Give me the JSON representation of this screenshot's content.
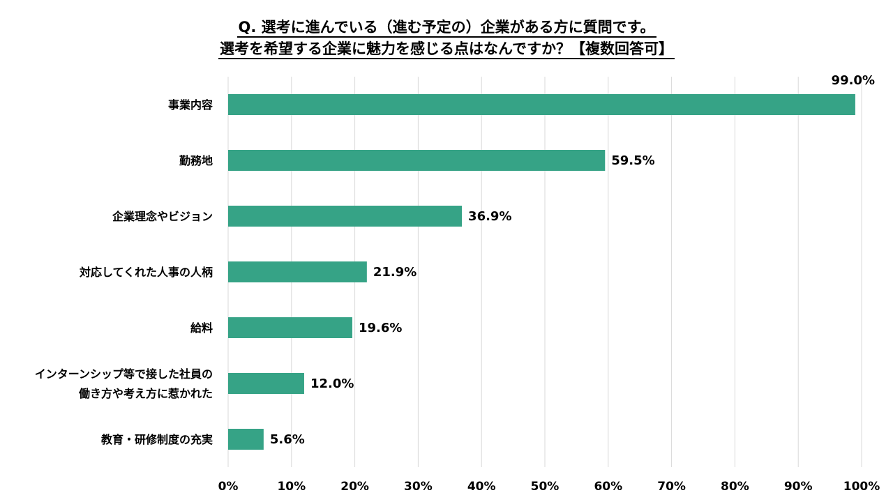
{
  "chart_data": {
    "type": "bar",
    "orientation": "horizontal",
    "title_line1": "Q. 選考に進んでいる（進む予定の）企業がある方に質問です。",
    "title_line2": "選考を希望する企業に魅力を感じる点はなんですか？【複数回答可】",
    "categories": [
      "事業内容",
      "勤務地",
      "企業理念やビジョン",
      "対応してくれた人事の人柄",
      "給料",
      "インターンシップ等で接した社員の働き方や考え方に惹かれた",
      "教育・研修制度の充実"
    ],
    "category_lines": [
      [
        "事業内容"
      ],
      [
        "勤務地"
      ],
      [
        "企業理念やビジョン"
      ],
      [
        "対応してくれた人事の人柄"
      ],
      [
        "給料"
      ],
      [
        "インターンシップ等で接した社員の",
        "働き方や考え方に惹かれた"
      ],
      [
        "教育・研修制度の充実"
      ]
    ],
    "values": [
      99.0,
      59.5,
      36.9,
      21.9,
      19.6,
      12.0,
      5.6
    ],
    "value_labels": [
      "99.0%",
      "59.5%",
      "36.9%",
      "21.9%",
      "19.6%",
      "12.0%",
      "5.6%"
    ],
    "xlim": [
      0,
      100
    ],
    "xticks": [
      0,
      10,
      20,
      30,
      40,
      50,
      60,
      70,
      80,
      90,
      100
    ],
    "xtick_labels": [
      "0%",
      "10%",
      "20%",
      "30%",
      "40%",
      "50%",
      "60%",
      "70%",
      "80%",
      "90%",
      "100%"
    ],
    "grid": true,
    "bar_color": "#36A386",
    "grid_color": "#D9D9D9"
  }
}
